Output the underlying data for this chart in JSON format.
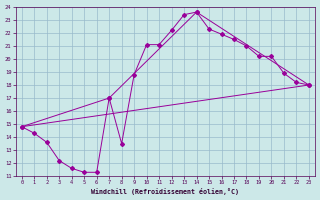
{
  "xlabel": "Windchill (Refroidissement éolien,°C)",
  "xlim": [
    -0.5,
    23.5
  ],
  "ylim": [
    11,
    24
  ],
  "xticks": [
    0,
    1,
    2,
    3,
    4,
    5,
    6,
    7,
    8,
    9,
    10,
    11,
    12,
    13,
    14,
    15,
    16,
    17,
    18,
    19,
    20,
    21,
    22,
    23
  ],
  "yticks": [
    11,
    12,
    13,
    14,
    15,
    16,
    17,
    18,
    19,
    20,
    21,
    22,
    23,
    24
  ],
  "bg_color": "#cce8e8",
  "grid_color": "#99bbcc",
  "line_color": "#990099",
  "line1": {
    "x": [
      0,
      1,
      2,
      3,
      4,
      5,
      6,
      7,
      8,
      9,
      10,
      11,
      12,
      13,
      14,
      15,
      16,
      17,
      18,
      19,
      20,
      21,
      22,
      23
    ],
    "y": [
      14.8,
      14.3,
      13.6,
      12.2,
      11.6,
      11.3,
      11.3,
      17.0,
      13.5,
      18.8,
      21.1,
      21.1,
      22.2,
      23.4,
      23.6,
      22.3,
      21.9,
      21.5,
      21.0,
      20.2,
      20.2,
      18.9,
      18.2,
      18.0
    ]
  },
  "line2": {
    "x": [
      0,
      23
    ],
    "y": [
      14.8,
      18.0
    ]
  },
  "line3": {
    "x": [
      0,
      7,
      14,
      23
    ],
    "y": [
      14.8,
      17.0,
      23.6,
      18.0
    ]
  }
}
